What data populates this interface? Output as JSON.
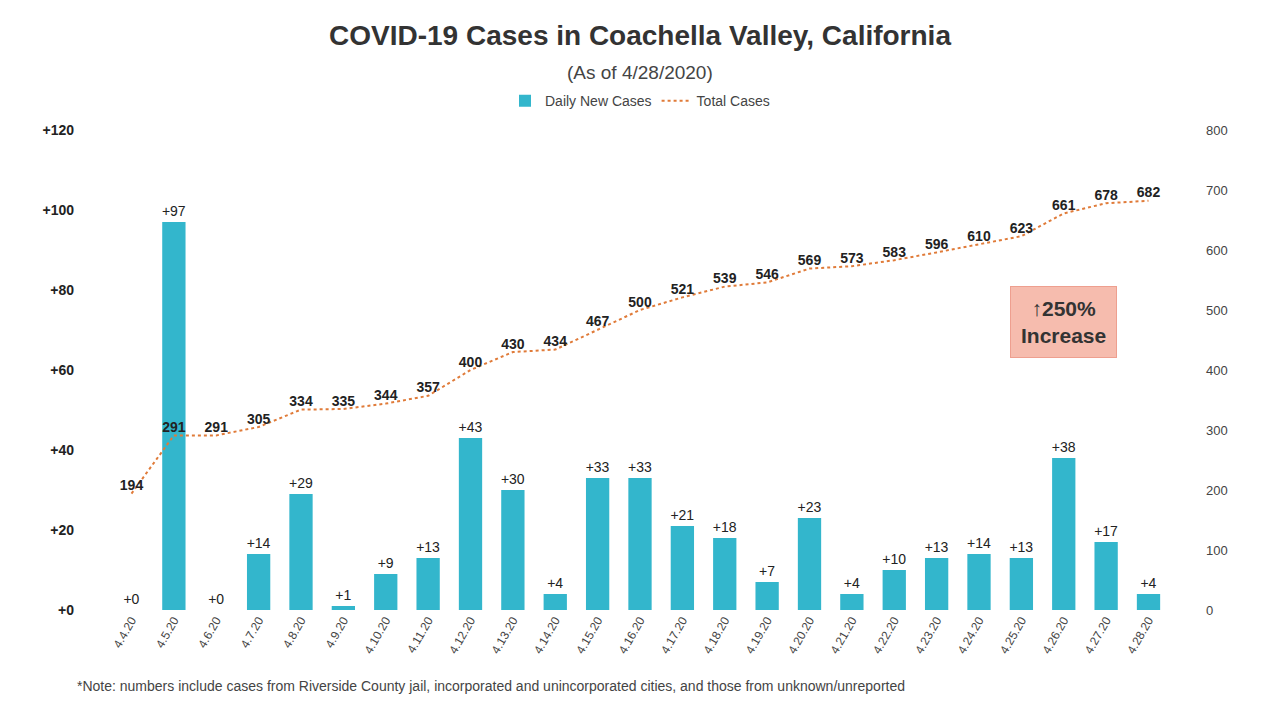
{
  "chart_data": {
    "type": "bar",
    "title": "COVID-19 Cases in Coachella Valley, California",
    "subtitle": "(As of 4/28/2020)",
    "categories": [
      "4.4.20",
      "4.5.20",
      "4.6.20",
      "4.7.20",
      "4.8.20",
      "4.9.20",
      "4.10.20",
      "4.11.20",
      "4.12.20",
      "4.13.20",
      "4.14.20",
      "4.15.20",
      "4.16.20",
      "4.17.20",
      "4.18.20",
      "4.19.20",
      "4.20.20",
      "4.21.20",
      "4.22.20",
      "4.23.20",
      "4.24.20",
      "4.25.20",
      "4.26.20",
      "4.27.20",
      "4.28.20"
    ],
    "series": [
      {
        "name": "Daily New Cases",
        "type": "bar",
        "color": "#33b6cc",
        "values": [
          0,
          97,
          0,
          14,
          29,
          1,
          9,
          13,
          43,
          30,
          4,
          33,
          33,
          21,
          18,
          7,
          23,
          4,
          10,
          13,
          14,
          13,
          38,
          17,
          4
        ],
        "value_labels": [
          "+0",
          "+97",
          "+0",
          "+14",
          "+29",
          "+1",
          "+9",
          "+13",
          "+43",
          "+30",
          "+4",
          "+33",
          "+33",
          "+21",
          "+18",
          "+7",
          "+23",
          "+4",
          "+10",
          "+13",
          "+14",
          "+13",
          "+38",
          "+17",
          "+4"
        ]
      },
      {
        "name": "Total Cases",
        "type": "line",
        "axis": "y2",
        "color": "#e07b39",
        "line_style": "dot",
        "values": [
          194,
          291,
          291,
          305,
          334,
          335,
          344,
          357,
          400,
          430,
          434,
          467,
          500,
          521,
          539,
          546,
          569,
          573,
          583,
          596,
          610,
          623,
          661,
          678,
          682
        ]
      }
    ],
    "ylim": [
      0,
      120
    ],
    "yticks": [
      {
        "value": 0,
        "label": "+0"
      },
      {
        "value": 20,
        "label": "+20"
      },
      {
        "value": 40,
        "label": "+40"
      },
      {
        "value": 60,
        "label": "+60"
      },
      {
        "value": 80,
        "label": "+80"
      },
      {
        "value": 100,
        "label": "+100"
      },
      {
        "value": 120,
        "label": "+120"
      }
    ],
    "y2lim": [
      0,
      800
    ],
    "y2ticks": [
      0,
      100,
      200,
      300,
      400,
      500,
      600,
      700,
      800
    ],
    "data_labels": true,
    "legend": "top",
    "grid": false,
    "annotation": "↑250% Increase",
    "note": "*Note: numbers include cases from Riverside County jail, incorporated and unincorporated cities, and those from unknown/unreported"
  }
}
